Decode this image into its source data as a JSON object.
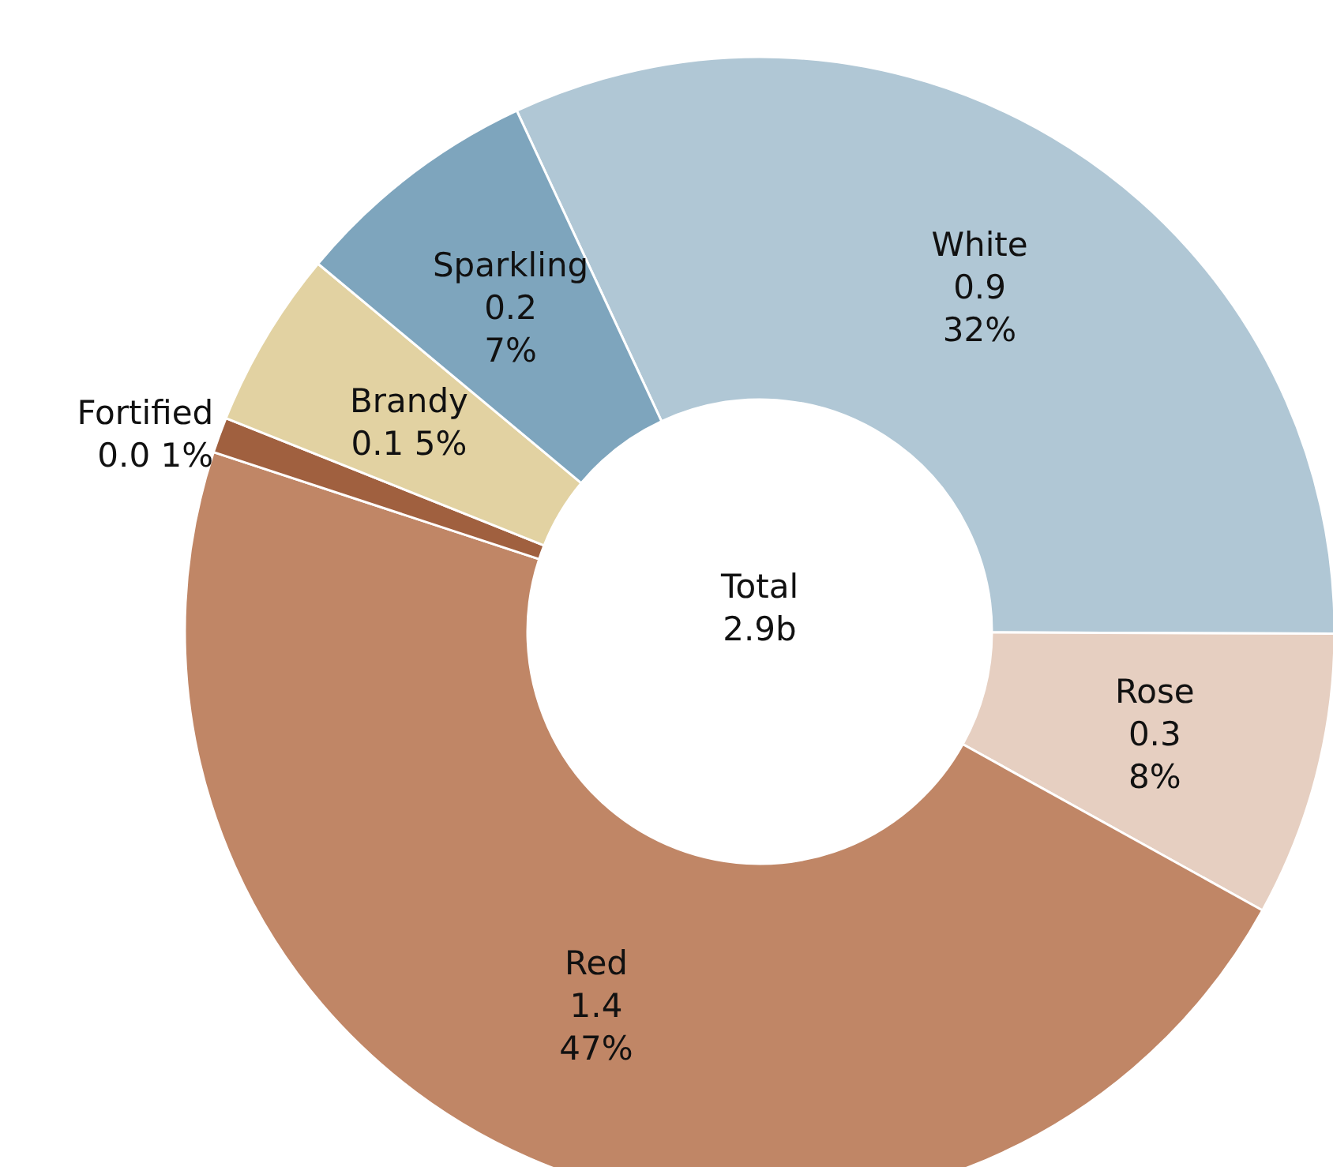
{
  "chart_data": {
    "type": "donut",
    "categories": [
      "White",
      "Rose",
      "Red",
      "Fortified",
      "Brandy",
      "Sparkling"
    ],
    "values": [
      32,
      8,
      47,
      1,
      5,
      7
    ],
    "value_labels": [
      "0.9\n32%",
      "0.3\n8%",
      "1.4\n47%",
      "0.0 1%",
      "0.1 5%",
      "0.2\n7%"
    ],
    "colors": [
      "#b0c7d5",
      "#e6cfc1",
      "#c08666",
      "#a0603f",
      "#e2d2a2",
      "#7ea5bd"
    ],
    "annotations": [
      "Total\n2.9b"
    ],
    "legend": false
  }
}
